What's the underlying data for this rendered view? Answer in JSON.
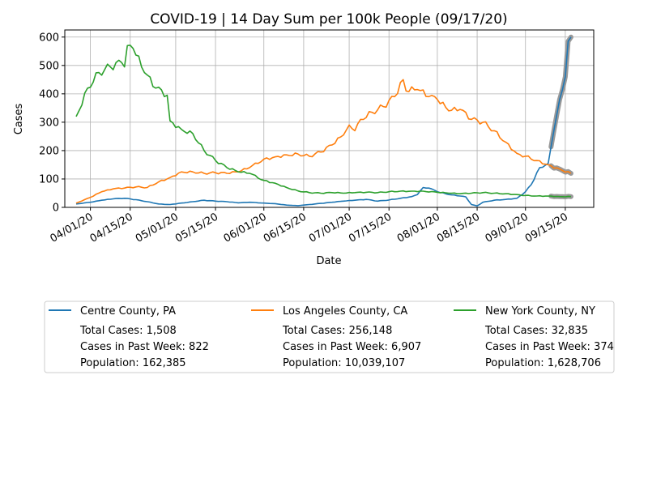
{
  "chart_data": {
    "type": "line",
    "title": "COVID-19 | 14 Day Sum per 100k People (09/17/20)",
    "xlabel": "Date",
    "ylabel": "Cases",
    "xlim": [
      "2020-03-23",
      "2020-09-25"
    ],
    "ylim": [
      0,
      625
    ],
    "grid": true,
    "legend_placement": "below",
    "x_ticks": [
      {
        "date": "2020-04-01",
        "label": "04/01/20"
      },
      {
        "date": "2020-04-15",
        "label": "04/15/20"
      },
      {
        "date": "2020-05-01",
        "label": "05/01/20"
      },
      {
        "date": "2020-05-15",
        "label": "05/15/20"
      },
      {
        "date": "2020-06-01",
        "label": "06/01/20"
      },
      {
        "date": "2020-06-15",
        "label": "06/15/20"
      },
      {
        "date": "2020-07-01",
        "label": "07/01/20"
      },
      {
        "date": "2020-07-15",
        "label": "07/15/20"
      },
      {
        "date": "2020-08-01",
        "label": "08/01/20"
      },
      {
        "date": "2020-08-15",
        "label": "08/15/20"
      },
      {
        "date": "2020-09-01",
        "label": "09/01/20"
      },
      {
        "date": "2020-09-15",
        "label": "09/15/20"
      }
    ],
    "y_ticks": [
      0,
      100,
      200,
      300,
      400,
      500,
      600
    ],
    "series": [
      {
        "name": "Centre County, PA",
        "color": "#1f77b4",
        "legend_lines": [
          "Total Cases: 1,508",
          "Cases in Past Week: 822",
          "Population: 162,385"
        ],
        "points": [
          [
            "2020-03-27",
            12
          ],
          [
            "2020-04-01",
            18
          ],
          [
            "2020-04-05",
            25
          ],
          [
            "2020-04-09",
            30
          ],
          [
            "2020-04-13",
            32
          ],
          [
            "2020-04-17",
            27
          ],
          [
            "2020-04-21",
            20
          ],
          [
            "2020-04-25",
            12
          ],
          [
            "2020-04-29",
            10
          ],
          [
            "2020-05-03",
            15
          ],
          [
            "2020-05-07",
            20
          ],
          [
            "2020-05-11",
            25
          ],
          [
            "2020-05-15",
            22
          ],
          [
            "2020-05-19",
            20
          ],
          [
            "2020-05-23",
            16
          ],
          [
            "2020-05-27",
            18
          ],
          [
            "2020-06-01",
            15
          ],
          [
            "2020-06-05",
            13
          ],
          [
            "2020-06-09",
            8
          ],
          [
            "2020-06-13",
            6
          ],
          [
            "2020-06-17",
            10
          ],
          [
            "2020-06-21",
            14
          ],
          [
            "2020-06-25",
            18
          ],
          [
            "2020-06-29",
            22
          ],
          [
            "2020-07-03",
            25
          ],
          [
            "2020-07-07",
            28
          ],
          [
            "2020-07-11",
            22
          ],
          [
            "2020-07-15",
            26
          ],
          [
            "2020-07-19",
            32
          ],
          [
            "2020-07-23",
            38
          ],
          [
            "2020-07-25",
            45
          ],
          [
            "2020-07-27",
            70
          ],
          [
            "2020-07-29",
            68
          ],
          [
            "2020-08-01",
            55
          ],
          [
            "2020-08-05",
            45
          ],
          [
            "2020-08-09",
            40
          ],
          [
            "2020-08-11",
            37
          ],
          [
            "2020-08-13",
            10
          ],
          [
            "2020-08-15",
            5
          ],
          [
            "2020-08-17",
            18
          ],
          [
            "2020-08-21",
            25
          ],
          [
            "2020-08-25",
            28
          ],
          [
            "2020-08-29",
            32
          ],
          [
            "2020-09-01",
            55
          ],
          [
            "2020-09-03",
            80
          ],
          [
            "2020-09-06",
            140
          ],
          [
            "2020-09-09",
            155
          ],
          [
            "2020-09-11",
            270
          ],
          [
            "2020-09-13",
            380
          ],
          [
            "2020-09-15",
            460
          ],
          [
            "2020-09-16",
            585
          ],
          [
            "2020-09-17",
            600
          ]
        ],
        "highlight_from": "2020-09-10"
      },
      {
        "name": "Los Angeles County, CA",
        "color": "#ff7f0e",
        "legend_lines": [
          "Total Cases: 256,148",
          "Cases in Past Week: 6,907",
          "Population: 10,039,107"
        ],
        "points": [
          [
            "2020-03-27",
            15
          ],
          [
            "2020-04-01",
            35
          ],
          [
            "2020-04-05",
            55
          ],
          [
            "2020-04-09",
            65
          ],
          [
            "2020-04-13",
            68
          ],
          [
            "2020-04-17",
            72
          ],
          [
            "2020-04-21",
            70
          ],
          [
            "2020-04-25",
            90
          ],
          [
            "2020-04-29",
            105
          ],
          [
            "2020-05-03",
            125
          ],
          [
            "2020-05-07",
            125
          ],
          [
            "2020-05-11",
            120
          ],
          [
            "2020-05-15",
            122
          ],
          [
            "2020-05-19",
            120
          ],
          [
            "2020-05-23",
            125
          ],
          [
            "2020-05-27",
            140
          ],
          [
            "2020-06-01",
            170
          ],
          [
            "2020-06-05",
            178
          ],
          [
            "2020-06-09",
            185
          ],
          [
            "2020-06-13",
            188
          ],
          [
            "2020-06-17",
            180
          ],
          [
            "2020-06-21",
            195
          ],
          [
            "2020-06-25",
            220
          ],
          [
            "2020-06-29",
            255
          ],
          [
            "2020-07-01",
            290
          ],
          [
            "2020-07-03",
            270
          ],
          [
            "2020-07-05",
            310
          ],
          [
            "2020-07-09",
            335
          ],
          [
            "2020-07-13",
            355
          ],
          [
            "2020-07-17",
            390
          ],
          [
            "2020-07-20",
            450
          ],
          [
            "2020-07-21",
            410
          ],
          [
            "2020-07-25",
            415
          ],
          [
            "2020-07-29",
            390
          ],
          [
            "2020-08-01",
            380
          ],
          [
            "2020-08-05",
            340
          ],
          [
            "2020-08-09",
            345
          ],
          [
            "2020-08-13",
            310
          ],
          [
            "2020-08-17",
            300
          ],
          [
            "2020-08-21",
            270
          ],
          [
            "2020-08-25",
            230
          ],
          [
            "2020-08-29",
            190
          ],
          [
            "2020-09-01",
            180
          ],
          [
            "2020-09-05",
            165
          ],
          [
            "2020-09-09",
            150
          ],
          [
            "2020-09-13",
            135
          ],
          [
            "2020-09-17",
            120
          ]
        ],
        "highlight_from": "2020-09-10"
      },
      {
        "name": "New York County, NY",
        "color": "#2ca02c",
        "legend_lines": [
          "Total Cases: 32,835",
          "Cases in Past Week: 374",
          "Population: 1,628,706"
        ],
        "points": [
          [
            "2020-03-27",
            320
          ],
          [
            "2020-03-31",
            420
          ],
          [
            "2020-04-04",
            475
          ],
          [
            "2020-04-08",
            495
          ],
          [
            "2020-04-12",
            510
          ],
          [
            "2020-04-13",
            495
          ],
          [
            "2020-04-14",
            570
          ],
          [
            "2020-04-16",
            560
          ],
          [
            "2020-04-20",
            475
          ],
          [
            "2020-04-24",
            420
          ],
          [
            "2020-04-28",
            395
          ],
          [
            "2020-04-29",
            305
          ],
          [
            "2020-05-03",
            275
          ],
          [
            "2020-05-07",
            260
          ],
          [
            "2020-05-11",
            200
          ],
          [
            "2020-05-15",
            165
          ],
          [
            "2020-05-19",
            140
          ],
          [
            "2020-05-23",
            125
          ],
          [
            "2020-05-27",
            120
          ],
          [
            "2020-06-01",
            95
          ],
          [
            "2020-06-05",
            85
          ],
          [
            "2020-06-09",
            70
          ],
          [
            "2020-06-13",
            58
          ],
          [
            "2020-06-17",
            52
          ],
          [
            "2020-06-21",
            50
          ],
          [
            "2020-06-25",
            52
          ],
          [
            "2020-06-29",
            50
          ],
          [
            "2020-07-03",
            52
          ],
          [
            "2020-07-07",
            53
          ],
          [
            "2020-07-11",
            52
          ],
          [
            "2020-07-15",
            55
          ],
          [
            "2020-07-19",
            57
          ],
          [
            "2020-07-23",
            57
          ],
          [
            "2020-07-27",
            57
          ],
          [
            "2020-08-01",
            53
          ],
          [
            "2020-08-05",
            50
          ],
          [
            "2020-08-09",
            48
          ],
          [
            "2020-08-13",
            50
          ],
          [
            "2020-08-17",
            52
          ],
          [
            "2020-08-21",
            50
          ],
          [
            "2020-08-25",
            48
          ],
          [
            "2020-08-29",
            45
          ],
          [
            "2020-09-01",
            42
          ],
          [
            "2020-09-05",
            40
          ],
          [
            "2020-09-09",
            40
          ],
          [
            "2020-09-13",
            38
          ],
          [
            "2020-09-17",
            38
          ]
        ],
        "highlight_from": "2020-09-10"
      }
    ]
  }
}
